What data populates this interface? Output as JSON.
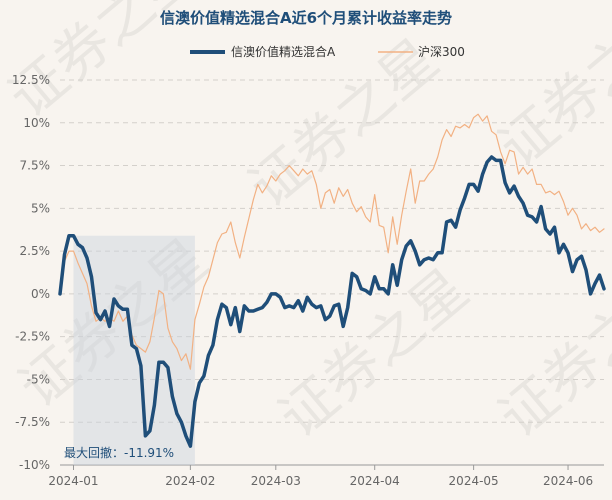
{
  "chart_data": {
    "type": "line",
    "title": "信澳价值精选混合A近6个月累计收益率走势",
    "watermark": "证券之星",
    "ylim": [
      -10,
      12.5
    ],
    "y_ticks": [
      "12.5%",
      "10%",
      "7.5%",
      "5%",
      "2.5%",
      "0%",
      "-2.5%",
      "-5%",
      "-7.5%",
      "-10%"
    ],
    "y_tick_values": [
      12.5,
      10,
      7.5,
      5,
      2.5,
      0,
      -2.5,
      -5,
      -7.5,
      -10
    ],
    "x_ticks": [
      "2024-01",
      "2024-02",
      "2024-03",
      "2024-04",
      "2024-05",
      "2024-06"
    ],
    "x_tick_index": [
      3,
      29,
      48,
      70,
      92,
      113
    ],
    "grid": true,
    "legend_placement": "top",
    "max_drawdown_label": "最大回撤：-11.91%",
    "max_drawdown_range_index": [
      2,
      31
    ],
    "colors": {
      "fund": "#1f4e79",
      "index": "#f2b183",
      "drawdown": "#c9d3de"
    },
    "series": [
      {
        "name": "信澳价值精选混合A",
        "values": [
          0.0,
          2.3,
          3.4,
          3.4,
          2.9,
          2.7,
          2.1,
          1.0,
          -1.1,
          -1.5,
          -1.0,
          -1.9,
          -0.3,
          -0.7,
          -0.9,
          -0.9,
          -3.0,
          -3.2,
          -4.2,
          -8.3,
          -8.0,
          -6.5,
          -4.0,
          -4.0,
          -4.3,
          -6.0,
          -7.0,
          -7.5,
          -8.3,
          -8.9,
          -6.3,
          -5.2,
          -4.8,
          -3.6,
          -3.0,
          -1.5,
          -0.6,
          -0.8,
          -1.8,
          -0.8,
          -2.2,
          -0.7,
          -1.0,
          -1.0,
          -0.9,
          -0.8,
          -0.5,
          0.0,
          0.0,
          -0.2,
          -0.8,
          -0.7,
          -0.8,
          -0.4,
          -1.0,
          -0.2,
          -0.6,
          -0.8,
          -0.7,
          -1.5,
          -1.3,
          -0.7,
          -0.6,
          -1.9,
          -0.8,
          1.2,
          1.0,
          0.3,
          0.2,
          0.0,
          1.0,
          0.3,
          0.3,
          0.0,
          1.7,
          0.5,
          2.0,
          2.8,
          3.1,
          2.5,
          1.7,
          2.0,
          2.1,
          2.0,
          2.4,
          2.4,
          4.2,
          4.3,
          3.9,
          4.9,
          5.6,
          6.4,
          6.4,
          6.0,
          7.0,
          7.7,
          8.0,
          7.8,
          7.8,
          6.5,
          5.9,
          6.3,
          5.7,
          5.3,
          4.6,
          4.5,
          4.2,
          5.1,
          3.8,
          3.5,
          3.9,
          2.4,
          2.9,
          2.4,
          1.3,
          2.0,
          2.2,
          1.4,
          0.0,
          0.6,
          1.1,
          0.3
        ]
      },
      {
        "name": "沪深300",
        "values": [
          0.0,
          1.9,
          2.5,
          2.5,
          1.8,
          1.2,
          0.6,
          -0.7,
          -1.6,
          -1.4,
          -1.6,
          -1.4,
          -1.6,
          -1.0,
          -1.6,
          -1.3,
          -2.4,
          -3.0,
          -3.2,
          -3.4,
          -2.8,
          -1.4,
          0.2,
          0.0,
          -2.0,
          -2.8,
          -3.2,
          -3.9,
          -3.5,
          -4.4,
          -1.5,
          -0.6,
          0.4,
          1.0,
          2.0,
          3.0,
          3.5,
          3.6,
          4.2,
          3.0,
          2.1,
          3.3,
          4.4,
          5.5,
          6.4,
          5.9,
          6.3,
          6.9,
          6.6,
          7.0,
          7.2,
          7.5,
          7.2,
          6.9,
          7.3,
          7.0,
          7.2,
          6.4,
          5.0,
          5.9,
          6.1,
          5.3,
          6.2,
          5.7,
          6.1,
          5.3,
          4.8,
          5.1,
          4.5,
          4.2,
          5.8,
          4.0,
          3.9,
          2.4,
          4.5,
          2.9,
          4.6,
          6.0,
          7.3,
          5.3,
          6.6,
          6.6,
          7.0,
          7.3,
          8.0,
          9.0,
          9.6,
          9.2,
          9.8,
          9.7,
          9.9,
          9.7,
          10.3,
          10.5,
          10.1,
          10.4,
          9.5,
          9.3,
          8.3,
          7.6,
          8.4,
          8.3,
          7.0,
          7.4,
          7.0,
          7.3,
          6.4,
          6.4,
          5.9,
          6.0,
          5.8,
          6.0,
          5.4,
          4.6,
          5.0,
          4.6,
          3.8,
          4.1,
          3.7,
          3.9,
          3.6,
          3.8
        ]
      }
    ]
  }
}
